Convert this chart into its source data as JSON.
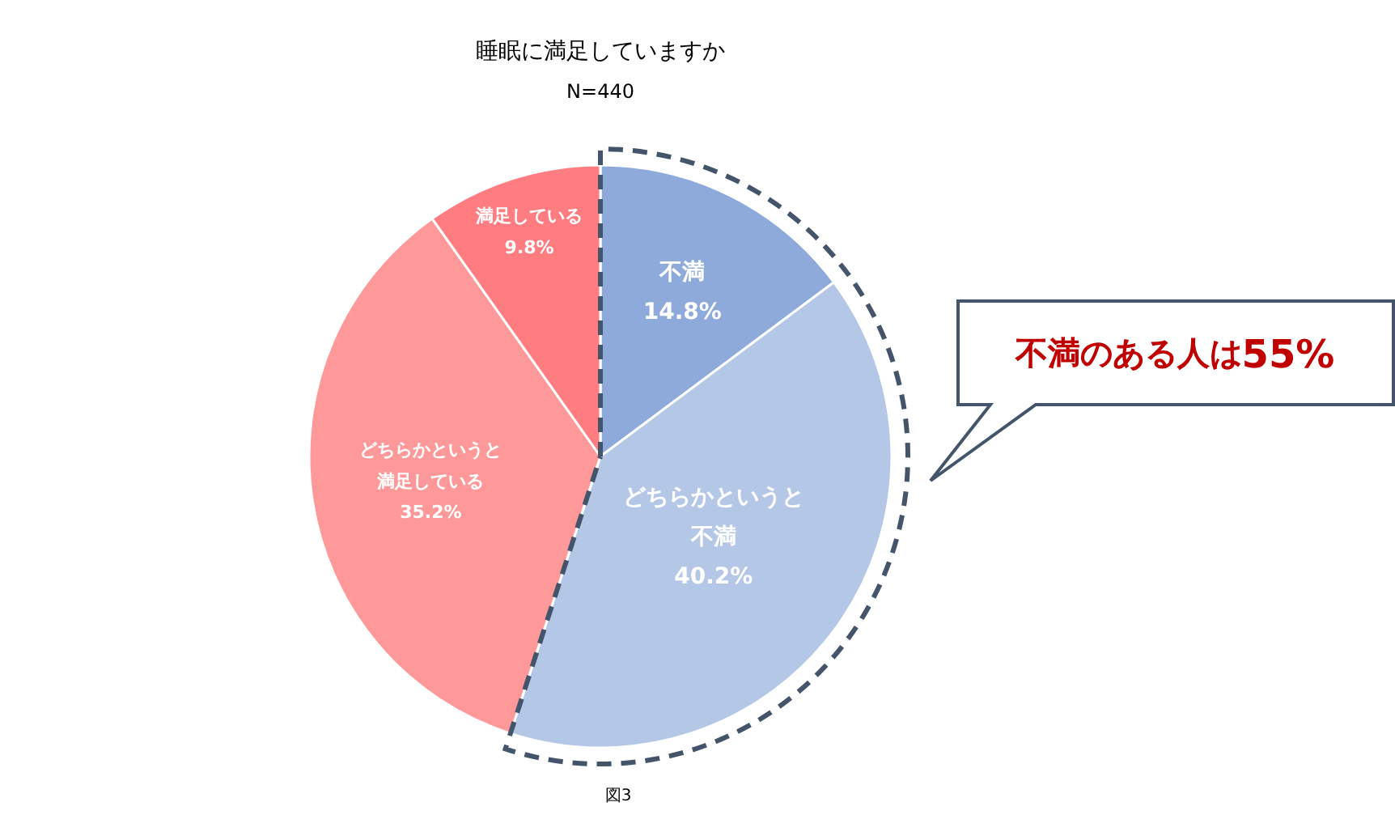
{
  "chart_data": {
    "type": "pie",
    "title": "睡眠に満足していますか",
    "subtitle": "N=440",
    "categories": [
      "不満",
      "どちらかというと不満",
      "どちらかというと満足している",
      "満足している"
    ],
    "values": [
      14.8,
      40.2,
      35.2,
      9.8
    ],
    "colors": [
      "#8eaadb",
      "#b4c7e7",
      "#ff9999",
      "#ff7c80"
    ],
    "value_labels": [
      "14.8%",
      "40.2%",
      "35.2%",
      "9.8%"
    ],
    "annotations": [
      "不満のある人は55%",
      "図3"
    ]
  }
}
